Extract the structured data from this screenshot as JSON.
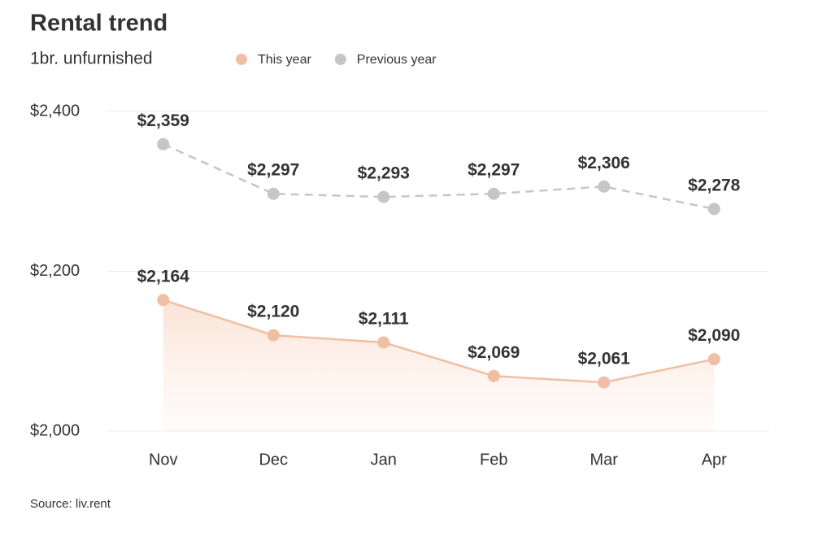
{
  "chart_data": {
    "type": "line",
    "title": "Rental trend",
    "subtitle": "1br. unfurnished",
    "source": "Source: liv.rent",
    "categories": [
      "Nov",
      "Dec",
      "Jan",
      "Feb",
      "Mar",
      "Apr"
    ],
    "series": [
      {
        "name": "This year",
        "color": "#f0bfa3",
        "label_color": "#333333",
        "dashed": false,
        "area": true,
        "values": [
          2164,
          2120,
          2111,
          2069,
          2061,
          2090
        ],
        "value_labels": [
          "$2,164",
          "$2,120",
          "$2,111",
          "$2,069",
          "$2,061",
          "$2,090"
        ]
      },
      {
        "name": "Previous year",
        "color": "#c6c6c6",
        "label_color": "#c8c8c8",
        "dashed": true,
        "area": false,
        "values": [
          2359,
          2297,
          2293,
          2297,
          2306,
          2278
        ],
        "value_labels": [
          "$2,359",
          "$2,297",
          "$2,293",
          "$2,297",
          "$2,306",
          "$2,278"
        ]
      }
    ],
    "ylim": [
      2000,
      2400
    ],
    "yticks": [
      {
        "value": 2000,
        "label": "$2,000"
      },
      {
        "value": 2200,
        "label": "$2,200"
      },
      {
        "value": 2400,
        "label": "$2,400"
      }
    ],
    "grid": true
  }
}
